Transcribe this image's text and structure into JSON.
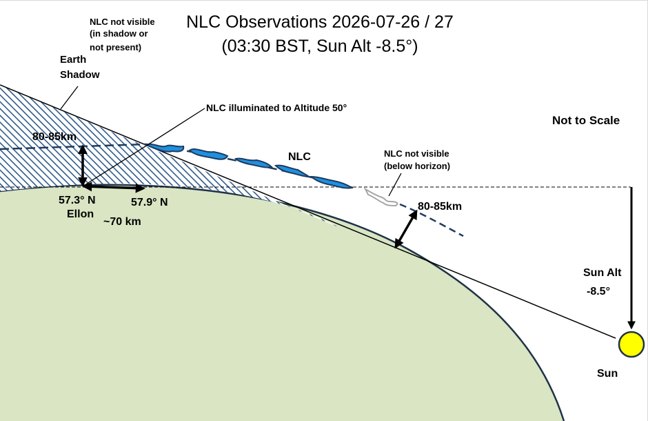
{
  "title": {
    "line1": "NLC Observations 2026-07-26 / 27",
    "line2": "(03:30 BST, Sun Alt -8.5°)"
  },
  "labels": {
    "nlc_not_visible_shadow": [
      "NLC not visible",
      "(in shadow or",
      "not present)"
    ],
    "earth_shadow": [
      "Earth",
      "Shadow"
    ],
    "nlc_illuminated": "NLC illuminated to Altitude 50°",
    "not_to_scale": "Not to Scale",
    "nlc": "NLC",
    "nlc_not_visible_horizon": [
      "NLC not visible",
      "(below horizon)"
    ],
    "height_left": "80-85km",
    "height_right": "80-85km",
    "lat_ellon": "57.3° N",
    "place_ellon": "Ellon",
    "lat_north": "57.9° N",
    "distance": "~70 km",
    "sun_alt": [
      "Sun Alt",
      "-8.5°"
    ],
    "sun": "Sun"
  },
  "colors": {
    "earth_fill": "#d9e5c3",
    "earth_outline": "#1f3247",
    "shadow_hatch": "#2e5a8c",
    "nlc_fill": "#1e90e0",
    "nlc_outline": "#1f3b5e",
    "nlc_hidden": "#a6a6a6",
    "sun_fill": "#ffff00"
  }
}
